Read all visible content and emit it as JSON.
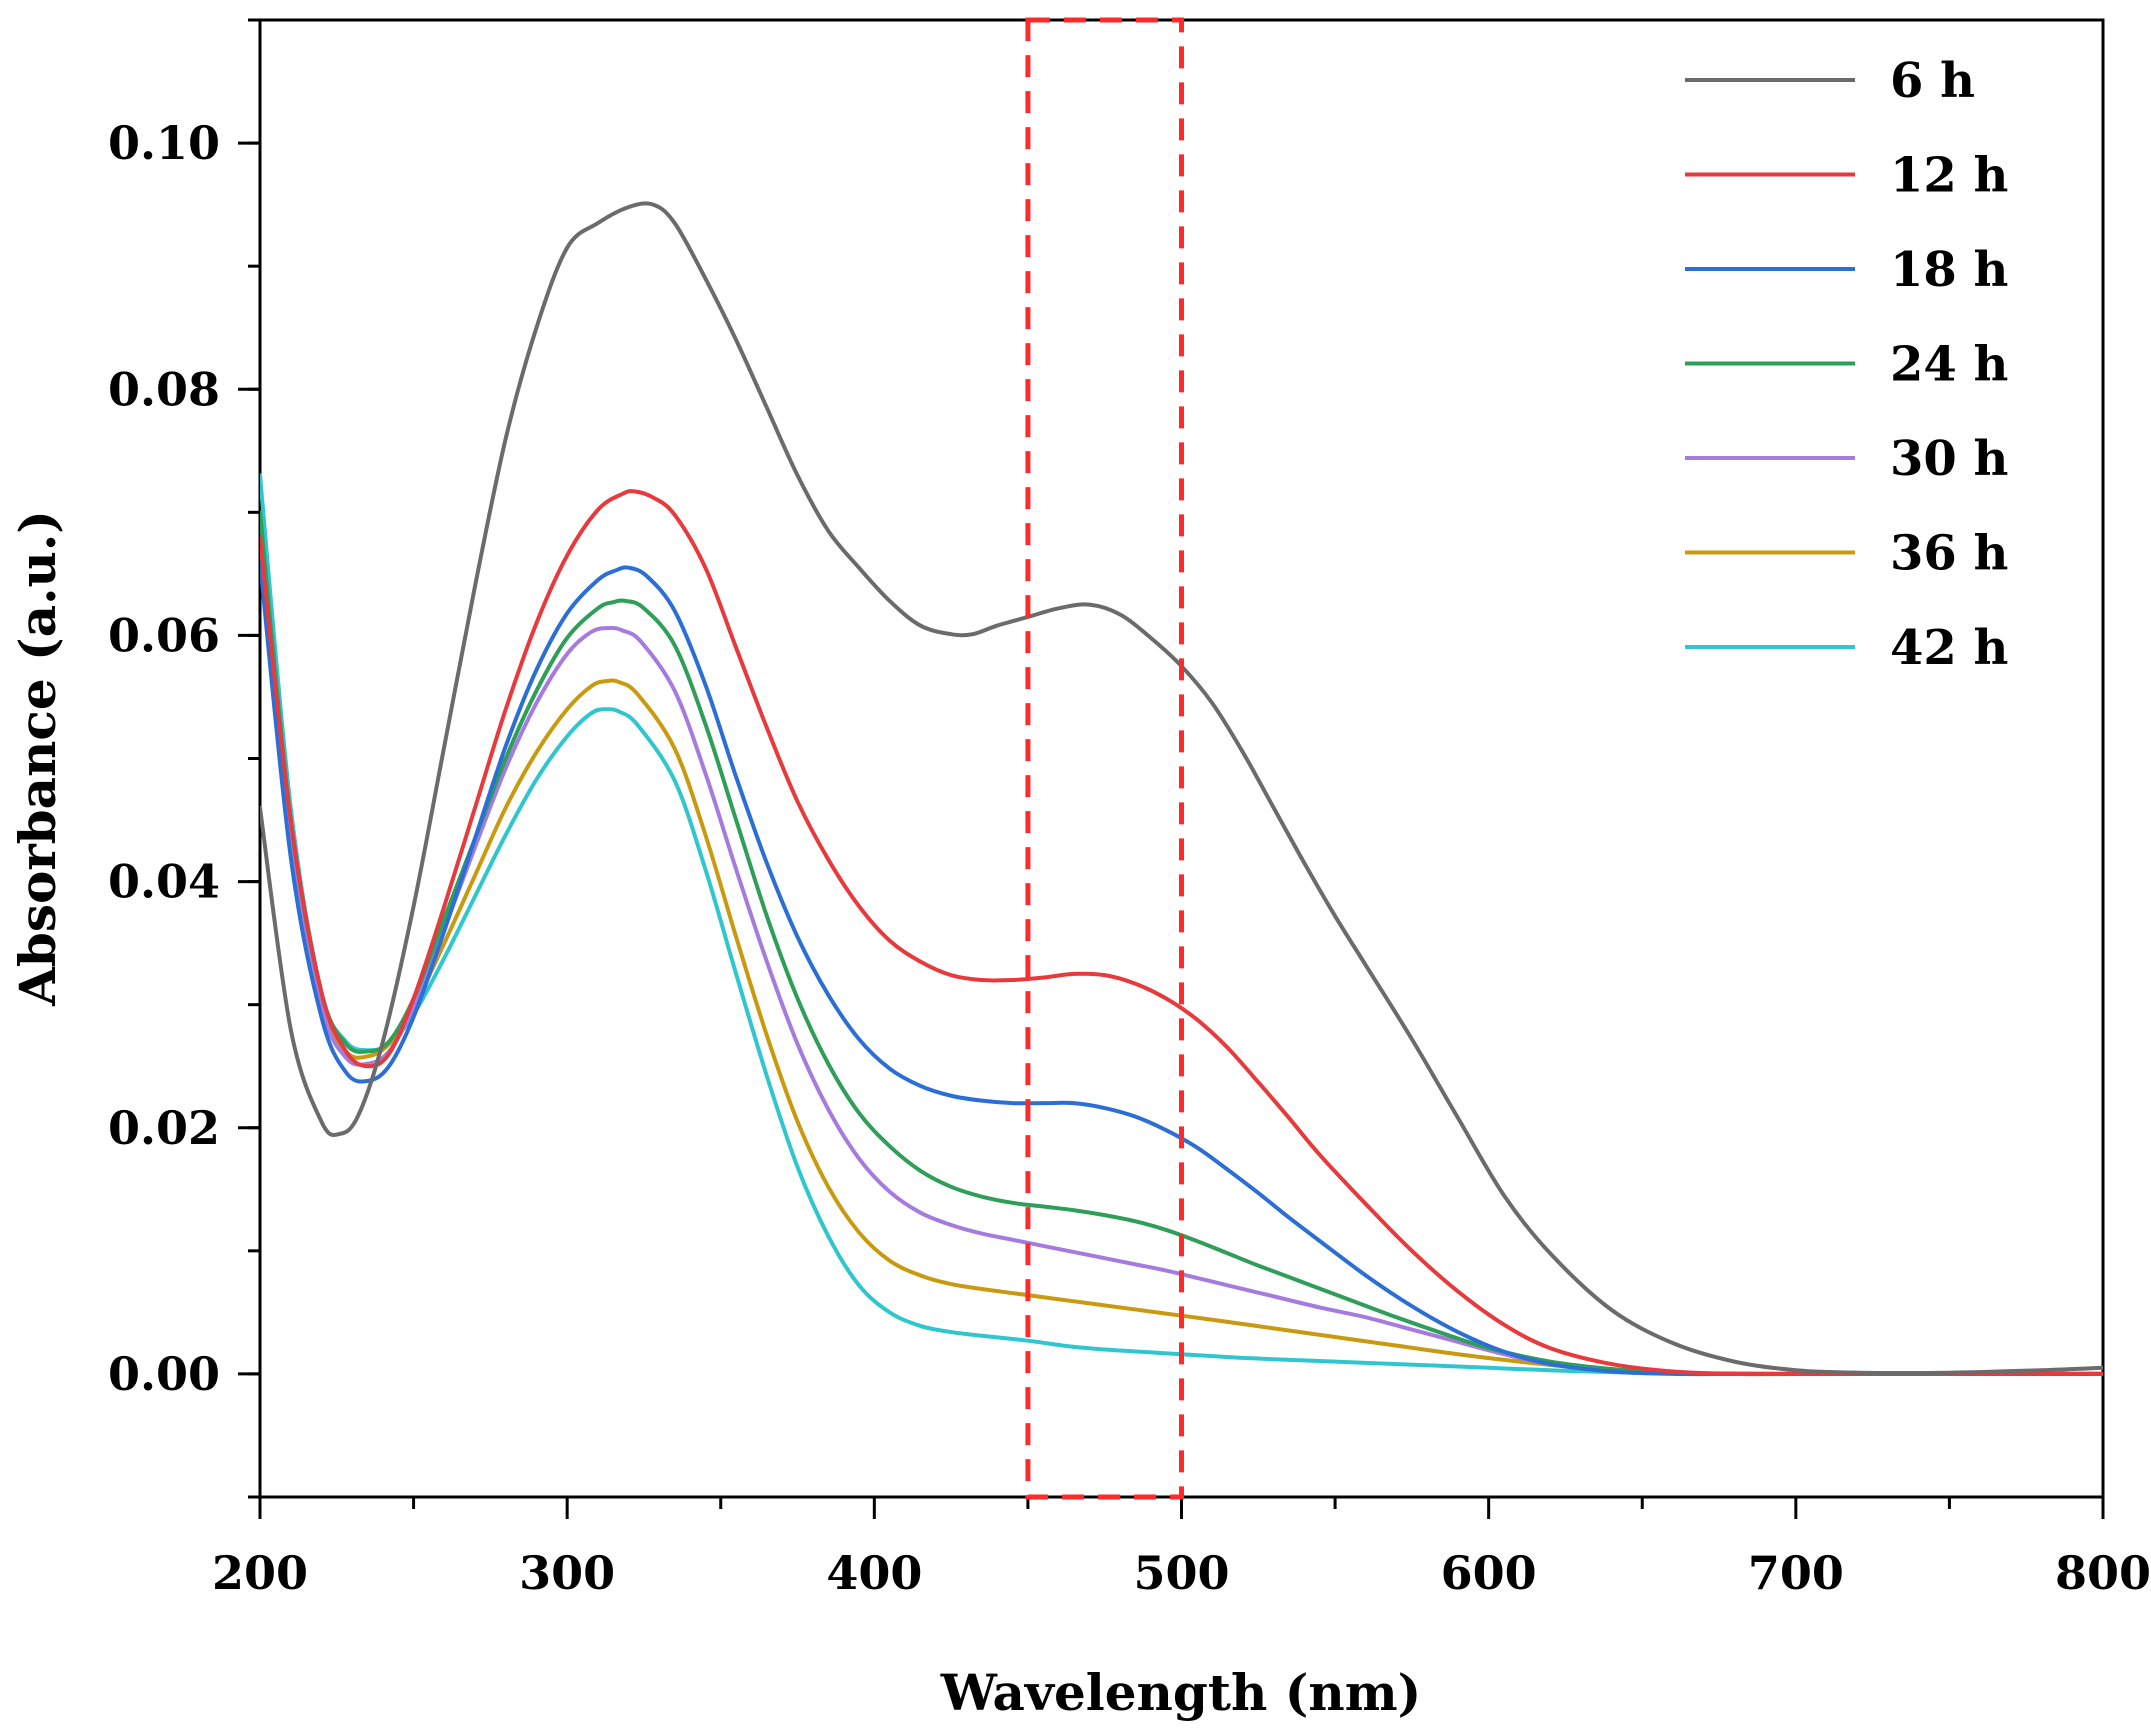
{
  "chart_data": {
    "type": "line",
    "title": "",
    "xlabel": "Wavelength (nm)",
    "ylabel": "Absorbance (a.u.)",
    "xlim": [
      200,
      800
    ],
    "ylim": [
      -0.01,
      0.11
    ],
    "xticks": [
      200,
      300,
      400,
      500,
      600,
      700,
      800
    ],
    "xtick_labels": [
      "200",
      "300",
      "400",
      "500",
      "600",
      "700",
      "800"
    ],
    "yticks": [
      0.0,
      0.02,
      0.04,
      0.06,
      0.08,
      0.1
    ],
    "ytick_labels": [
      "0.00",
      "0.02",
      "0.04",
      "0.06",
      "0.08",
      "0.10"
    ],
    "grid": false,
    "legend_position": "top-right",
    "highlight_region": {
      "x": [
        450,
        500
      ],
      "style": "dashed",
      "color": "#ff2a2a"
    },
    "series": [
      {
        "name": "6 h",
        "color": "#6b6b6b",
        "x": [
          200,
          210,
          220,
          226,
          232,
          240,
          250,
          260,
          270,
          280,
          290,
          300,
          310,
          320,
          328,
          335,
          345,
          355,
          365,
          375,
          385,
          395,
          405,
          415,
          425,
          432,
          440,
          450,
          460,
          470,
          480,
          490,
          500,
          510,
          520,
          530,
          540,
          550,
          560,
          575,
          590,
          605,
          620,
          640,
          660,
          680,
          700,
          720,
          750,
          780,
          800
        ],
        "y": [
          0.046,
          0.028,
          0.0205,
          0.0195,
          0.021,
          0.027,
          0.038,
          0.051,
          0.064,
          0.076,
          0.085,
          0.0915,
          0.0935,
          0.0948,
          0.095,
          0.0935,
          0.089,
          0.084,
          0.0785,
          0.073,
          0.0685,
          0.0655,
          0.0628,
          0.0608,
          0.0601,
          0.0601,
          0.0608,
          0.0615,
          0.0622,
          0.0625,
          0.0617,
          0.0598,
          0.0575,
          0.0545,
          0.0505,
          0.046,
          0.0415,
          0.0372,
          0.0332,
          0.0272,
          0.0208,
          0.0145,
          0.0098,
          0.0052,
          0.0025,
          0.001,
          0.0003,
          0.0001,
          0.0001,
          0.0003,
          0.0005
        ]
      },
      {
        "name": "12 h",
        "color": "#e8393d",
        "x": [
          200,
          210,
          220,
          228,
          235,
          242,
          250,
          260,
          270,
          280,
          290,
          300,
          310,
          318,
          322,
          328,
          335,
          345,
          355,
          365,
          375,
          385,
          395,
          405,
          415,
          425,
          435,
          445,
          455,
          465,
          475,
          485,
          495,
          505,
          515,
          525,
          535,
          545,
          560,
          575,
          590,
          605,
          620,
          640,
          660,
          680,
          700,
          740,
          800
        ],
        "y": [
          0.068,
          0.045,
          0.031,
          0.0262,
          0.025,
          0.026,
          0.0305,
          0.038,
          0.046,
          0.054,
          0.061,
          0.0665,
          0.0702,
          0.0715,
          0.0717,
          0.0712,
          0.0698,
          0.0655,
          0.059,
          0.0525,
          0.0465,
          0.0418,
          0.038,
          0.0352,
          0.0335,
          0.0324,
          0.032,
          0.032,
          0.0322,
          0.0325,
          0.0324,
          0.0317,
          0.0305,
          0.0288,
          0.0265,
          0.0237,
          0.0208,
          0.0178,
          0.0138,
          0.01,
          0.0067,
          0.004,
          0.0021,
          0.0008,
          0.0002,
          0.0,
          0.0,
          0.0,
          0.0
        ]
      },
      {
        "name": "18 h",
        "color": "#2b6fd6",
        "x": [
          200,
          210,
          220,
          228,
          235,
          242,
          250,
          260,
          270,
          280,
          290,
          300,
          310,
          316,
          320,
          326,
          335,
          345,
          355,
          365,
          375,
          385,
          395,
          405,
          415,
          425,
          435,
          445,
          455,
          465,
          475,
          485,
          495,
          505,
          515,
          525,
          535,
          545,
          560,
          575,
          590,
          605,
          620,
          640,
          660,
          680,
          700,
          740,
          800
        ],
        "y": [
          0.066,
          0.042,
          0.029,
          0.0245,
          0.0238,
          0.025,
          0.029,
          0.036,
          0.0435,
          0.051,
          0.0572,
          0.0618,
          0.0645,
          0.0653,
          0.0655,
          0.0648,
          0.062,
          0.056,
          0.0485,
          0.0415,
          0.0355,
          0.0308,
          0.0272,
          0.0248,
          0.0234,
          0.0226,
          0.0222,
          0.022,
          0.022,
          0.022,
          0.0216,
          0.0209,
          0.0198,
          0.0184,
          0.0166,
          0.0147,
          0.0127,
          0.0108,
          0.008,
          0.0055,
          0.0034,
          0.0018,
          0.0008,
          0.0002,
          0.0,
          0.0,
          0.0,
          0.0,
          0.0
        ]
      },
      {
        "name": "24 h",
        "color": "#2e9e58",
        "x": [
          200,
          210,
          220,
          228,
          235,
          242,
          250,
          260,
          270,
          280,
          290,
          300,
          310,
          315,
          319,
          325,
          335,
          345,
          355,
          365,
          375,
          385,
          395,
          405,
          415,
          425,
          435,
          445,
          455,
          465,
          475,
          485,
          495,
          505,
          515,
          525,
          540,
          555,
          570,
          585,
          600,
          620,
          640,
          660,
          680,
          700,
          740,
          800
        ],
        "y": [
          0.07,
          0.045,
          0.031,
          0.0268,
          0.0262,
          0.027,
          0.0305,
          0.037,
          0.0435,
          0.05,
          0.0555,
          0.0598,
          0.0622,
          0.0627,
          0.0628,
          0.0622,
          0.0592,
          0.0528,
          0.045,
          0.0372,
          0.0305,
          0.0252,
          0.0212,
          0.0185,
          0.0165,
          0.0152,
          0.0144,
          0.0139,
          0.0136,
          0.0133,
          0.0129,
          0.0124,
          0.0117,
          0.0108,
          0.0098,
          0.0088,
          0.0074,
          0.006,
          0.0046,
          0.0033,
          0.0021,
          0.001,
          0.0004,
          0.0001,
          0.0,
          0.0,
          0.0,
          0.0
        ]
      },
      {
        "name": "30 h",
        "color": "#a57be0",
        "x": [
          200,
          210,
          220,
          228,
          235,
          242,
          250,
          260,
          270,
          280,
          290,
          300,
          308,
          314,
          318,
          324,
          335,
          345,
          355,
          365,
          375,
          385,
          395,
          405,
          415,
          425,
          435,
          445,
          455,
          465,
          475,
          485,
          495,
          505,
          515,
          530,
          545,
          560,
          575,
          590,
          605,
          620,
          640,
          660,
          680,
          700,
          740,
          800
        ],
        "y": [
          0.067,
          0.043,
          0.0298,
          0.0257,
          0.0252,
          0.0262,
          0.0298,
          0.0362,
          0.0428,
          0.0492,
          0.0545,
          0.0585,
          0.0603,
          0.0606,
          0.0604,
          0.0595,
          0.0555,
          0.0488,
          0.041,
          0.0335,
          0.0268,
          0.0215,
          0.0175,
          0.0148,
          0.0131,
          0.0121,
          0.0114,
          0.0109,
          0.0104,
          0.0099,
          0.0094,
          0.0089,
          0.0084,
          0.0078,
          0.0072,
          0.0063,
          0.0054,
          0.0046,
          0.0036,
          0.0026,
          0.0016,
          0.0008,
          0.0003,
          0.0001,
          0.0,
          0.0,
          0.0,
          0.0
        ]
      },
      {
        "name": "36 h",
        "color": "#c99a10",
        "x": [
          200,
          210,
          220,
          228,
          235,
          242,
          250,
          260,
          270,
          280,
          290,
          300,
          308,
          313,
          317,
          323,
          335,
          345,
          355,
          365,
          375,
          385,
          395,
          405,
          415,
          425,
          435,
          450,
          465,
          480,
          495,
          510,
          530,
          550,
          570,
          590,
          610,
          630,
          650,
          680,
          720,
          800
        ],
        "y": [
          0.068,
          0.044,
          0.0302,
          0.0262,
          0.0258,
          0.0268,
          0.0298,
          0.035,
          0.0405,
          0.046,
          0.0505,
          0.054,
          0.0559,
          0.0563,
          0.0562,
          0.0552,
          0.0508,
          0.0438,
          0.0355,
          0.0275,
          0.0205,
          0.0152,
          0.0115,
          0.0092,
          0.008,
          0.0073,
          0.0069,
          0.0064,
          0.0059,
          0.0054,
          0.0049,
          0.0044,
          0.0037,
          0.003,
          0.0023,
          0.0016,
          0.001,
          0.0005,
          0.0002,
          0.0,
          0.0,
          0.0
        ]
      },
      {
        "name": "42 h",
        "color": "#2fc6cf",
        "x": [
          200,
          210,
          220,
          228,
          235,
          242,
          250,
          260,
          270,
          280,
          290,
          300,
          308,
          313,
          317,
          323,
          335,
          345,
          355,
          365,
          375,
          385,
          395,
          405,
          415,
          425,
          435,
          450,
          465,
          480,
          500,
          520,
          540,
          560,
          580,
          600,
          620,
          650,
          700,
          800
        ],
        "y": [
          0.073,
          0.046,
          0.031,
          0.027,
          0.0263,
          0.0268,
          0.0292,
          0.0338,
          0.0388,
          0.0438,
          0.0483,
          0.0518,
          0.0537,
          0.054,
          0.0538,
          0.0527,
          0.0482,
          0.041,
          0.0325,
          0.0242,
          0.0168,
          0.0112,
          0.0072,
          0.005,
          0.0039,
          0.0034,
          0.0031,
          0.0027,
          0.0022,
          0.0019,
          0.0016,
          0.0013,
          0.0011,
          0.0009,
          0.0007,
          0.0005,
          0.0003,
          0.0001,
          0.0,
          0.0
        ]
      }
    ]
  }
}
